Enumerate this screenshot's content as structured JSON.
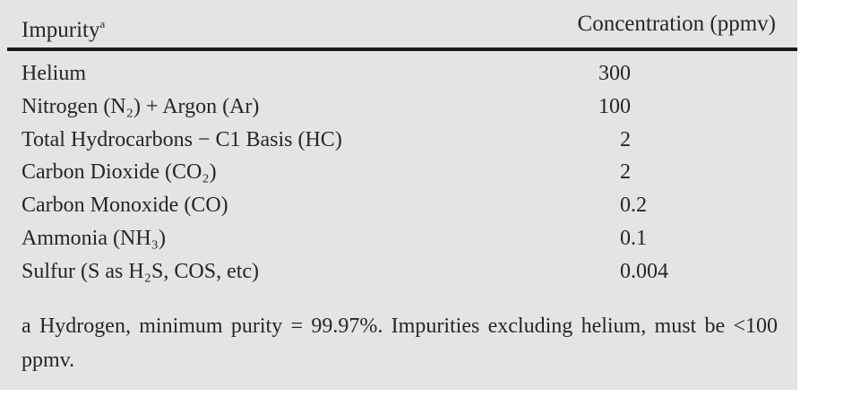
{
  "table": {
    "header": {
      "impurity": "Impurity",
      "impurity_note": "a",
      "concentration": "Concentration (ppmv)"
    },
    "rows": [
      [
        "Helium",
        300
      ],
      [
        "Nitrogen (N₂) + Argon (Ar)",
        100
      ],
      [
        "Total Hydrocarbons − C1 Basis (HC)",
        2
      ],
      [
        "Carbon Dioxide (CO₂)",
        2
      ],
      [
        "Carbon Monoxide (CO)",
        0.2
      ],
      [
        "Ammonia (NH₃)",
        0.1
      ],
      [
        "Sulfur (S as H₂S, COS, etc)",
        0.004
      ]
    ],
    "footnote": {
      "marker": "a",
      "text": "Hydrogen, minimum purity = 99.97%. Impurities excluding helium, must be <100 ppmv."
    }
  }
}
